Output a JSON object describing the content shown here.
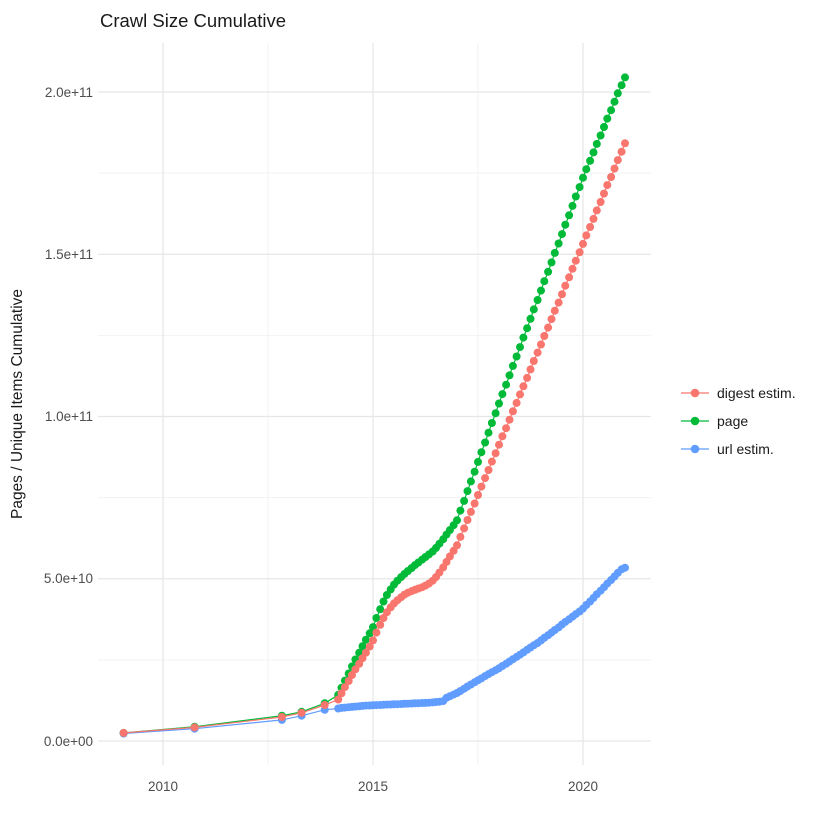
{
  "chart_data": {
    "type": "scatter",
    "title": "Crawl Size Cumulative",
    "xlabel": "",
    "ylabel": "Pages / Unique Items Cumulative",
    "x_ticks": [
      2010,
      2015,
      2020
    ],
    "x_minor": [
      2012.5,
      2017.5
    ],
    "y_ticks": [
      "0.0e+00",
      "5.0e+10",
      "1.0e+11",
      "1.5e+11",
      "2.0e+11"
    ],
    "y_tick_values_e9": [
      0,
      50,
      100,
      150,
      200
    ],
    "y_minor_e9": [
      25,
      75,
      125,
      175
    ],
    "xlim": [
      2008.45,
      2021.62
    ],
    "ylim_e9": [
      -7.4,
      215.1
    ],
    "units": "values in billions of pages/items (1 = 1e9)",
    "grid": "major+minor",
    "grid_major_color": "#e6e6e6",
    "grid_minor_color": "#f2f2f2",
    "background_color": "#ffffff",
    "legend_position": "right",
    "point_radius": 4,
    "series": [
      {
        "name": "digest estim.",
        "color": "#F8766D",
        "points": [
          [
            2009.06,
            2.5
          ],
          [
            2010.75,
            4.2
          ],
          [
            2012.83,
            7.4
          ],
          [
            2013.3,
            8.7
          ],
          [
            2013.85,
            11.1
          ],
          [
            2014.17,
            12.8
          ],
          [
            2014.25,
            14.7
          ],
          [
            2014.33,
            16.6
          ],
          [
            2014.42,
            18.5
          ],
          [
            2014.5,
            20.3
          ],
          [
            2014.58,
            22.1
          ],
          [
            2014.67,
            23.8
          ],
          [
            2014.75,
            25.5
          ],
          [
            2014.83,
            27.2
          ],
          [
            2014.92,
            29.1
          ],
          [
            2015.0,
            31.0
          ],
          [
            2015.08,
            33.4
          ],
          [
            2015.17,
            35.8
          ],
          [
            2015.25,
            37.9
          ],
          [
            2015.33,
            39.7
          ],
          [
            2015.42,
            41.2
          ],
          [
            2015.5,
            42.4
          ],
          [
            2015.58,
            43.4
          ],
          [
            2015.67,
            44.3
          ],
          [
            2015.75,
            45.1
          ],
          [
            2015.83,
            45.7
          ],
          [
            2015.92,
            46.2
          ],
          [
            2016.0,
            46.6
          ],
          [
            2016.08,
            47.0
          ],
          [
            2016.17,
            47.4
          ],
          [
            2016.25,
            47.9
          ],
          [
            2016.33,
            48.5
          ],
          [
            2016.42,
            49.4
          ],
          [
            2016.5,
            50.5
          ],
          [
            2016.58,
            51.9
          ],
          [
            2016.67,
            53.5
          ],
          [
            2016.75,
            55.2
          ],
          [
            2016.83,
            56.9
          ],
          [
            2016.92,
            58.6
          ],
          [
            2017.0,
            60.3
          ],
          [
            2017.08,
            62.9
          ],
          [
            2017.17,
            65.5
          ],
          [
            2017.25,
            68.1
          ],
          [
            2017.33,
            70.6
          ],
          [
            2017.42,
            73.2
          ],
          [
            2017.5,
            75.8
          ],
          [
            2017.58,
            78.4
          ],
          [
            2017.67,
            81.0
          ],
          [
            2017.75,
            83.5
          ],
          [
            2017.83,
            86.1
          ],
          [
            2017.92,
            88.7
          ],
          [
            2018.0,
            91.3
          ],
          [
            2018.08,
            93.9
          ],
          [
            2018.17,
            96.4
          ],
          [
            2018.25,
            99.0
          ],
          [
            2018.33,
            101.6
          ],
          [
            2018.42,
            104.2
          ],
          [
            2018.5,
            106.8
          ],
          [
            2018.58,
            109.3
          ],
          [
            2018.67,
            111.9
          ],
          [
            2018.75,
            114.5
          ],
          [
            2018.83,
            117.1
          ],
          [
            2018.92,
            119.7
          ],
          [
            2019.0,
            122.2
          ],
          [
            2019.08,
            124.8
          ],
          [
            2019.17,
            127.4
          ],
          [
            2019.25,
            130.0
          ],
          [
            2019.33,
            132.6
          ],
          [
            2019.42,
            135.1
          ],
          [
            2019.5,
            137.7
          ],
          [
            2019.58,
            140.3
          ],
          [
            2019.67,
            142.9
          ],
          [
            2019.75,
            145.5
          ],
          [
            2019.83,
            148.0
          ],
          [
            2019.92,
            150.6
          ],
          [
            2020.0,
            153.2
          ],
          [
            2020.08,
            155.8
          ],
          [
            2020.17,
            158.4
          ],
          [
            2020.25,
            160.9
          ],
          [
            2020.33,
            163.5
          ],
          [
            2020.42,
            166.1
          ],
          [
            2020.5,
            168.7
          ],
          [
            2020.58,
            171.3
          ],
          [
            2020.67,
            173.8
          ],
          [
            2020.75,
            176.4
          ],
          [
            2020.83,
            179.0
          ],
          [
            2020.92,
            181.6
          ],
          [
            2021.0,
            184.2
          ]
        ]
      },
      {
        "name": "page",
        "color": "#00BA38",
        "points": [
          [
            2009.06,
            2.5
          ],
          [
            2010.75,
            4.4
          ],
          [
            2012.83,
            7.8
          ],
          [
            2013.3,
            9.0
          ],
          [
            2013.85,
            11.6
          ],
          [
            2014.17,
            14.2
          ],
          [
            2014.25,
            16.4
          ],
          [
            2014.33,
            18.6
          ],
          [
            2014.42,
            20.8
          ],
          [
            2014.5,
            23.0
          ],
          [
            2014.58,
            25.1
          ],
          [
            2014.67,
            27.2
          ],
          [
            2014.75,
            29.2
          ],
          [
            2014.83,
            31.2
          ],
          [
            2014.92,
            33.2
          ],
          [
            2015.0,
            35.1
          ],
          [
            2015.08,
            37.9
          ],
          [
            2015.17,
            40.6
          ],
          [
            2015.25,
            43.0
          ],
          [
            2015.33,
            45.0
          ],
          [
            2015.42,
            46.7
          ],
          [
            2015.5,
            48.2
          ],
          [
            2015.58,
            49.4
          ],
          [
            2015.67,
            50.5
          ],
          [
            2015.75,
            51.5
          ],
          [
            2015.83,
            52.4
          ],
          [
            2015.92,
            53.3
          ],
          [
            2016.0,
            54.2
          ],
          [
            2016.08,
            55.0
          ],
          [
            2016.17,
            55.9
          ],
          [
            2016.25,
            56.7
          ],
          [
            2016.33,
            57.5
          ],
          [
            2016.42,
            58.4
          ],
          [
            2016.5,
            59.5
          ],
          [
            2016.58,
            60.8
          ],
          [
            2016.67,
            62.2
          ],
          [
            2016.75,
            63.6
          ],
          [
            2016.83,
            65.0
          ],
          [
            2016.92,
            66.5
          ],
          [
            2017.0,
            68.0
          ],
          [
            2017.08,
            71.0
          ],
          [
            2017.17,
            74.0
          ],
          [
            2017.25,
            77.0
          ],
          [
            2017.33,
            80.0
          ],
          [
            2017.42,
            83.0
          ],
          [
            2017.5,
            86.0
          ],
          [
            2017.58,
            89.0
          ],
          [
            2017.67,
            92.0
          ],
          [
            2017.75,
            95.0
          ],
          [
            2017.83,
            98.0
          ],
          [
            2017.92,
            101.0
          ],
          [
            2018.0,
            104.0
          ],
          [
            2018.08,
            106.9
          ],
          [
            2018.17,
            109.8
          ],
          [
            2018.25,
            112.7
          ],
          [
            2018.33,
            115.6
          ],
          [
            2018.42,
            118.5
          ],
          [
            2018.5,
            121.4
          ],
          [
            2018.58,
            124.3
          ],
          [
            2018.67,
            127.2
          ],
          [
            2018.75,
            130.1
          ],
          [
            2018.83,
            133.0
          ],
          [
            2018.92,
            135.9
          ],
          [
            2019.0,
            138.8
          ],
          [
            2019.08,
            141.7
          ],
          [
            2019.17,
            144.6
          ],
          [
            2019.25,
            147.5
          ],
          [
            2019.33,
            150.4
          ],
          [
            2019.42,
            153.3
          ],
          [
            2019.5,
            156.2
          ],
          [
            2019.58,
            159.1
          ],
          [
            2019.67,
            162.0
          ],
          [
            2019.75,
            164.9
          ],
          [
            2019.83,
            167.8
          ],
          [
            2019.92,
            170.7
          ],
          [
            2020.0,
            173.6
          ],
          [
            2020.08,
            176.2
          ],
          [
            2020.17,
            178.8
          ],
          [
            2020.25,
            181.4
          ],
          [
            2020.33,
            184.0
          ],
          [
            2020.42,
            186.6
          ],
          [
            2020.5,
            189.2
          ],
          [
            2020.58,
            191.8
          ],
          [
            2020.67,
            194.4
          ],
          [
            2020.75,
            197.0
          ],
          [
            2020.83,
            199.6
          ],
          [
            2020.92,
            202.1
          ],
          [
            2021.0,
            204.5
          ]
        ]
      },
      {
        "name": "url estim.",
        "color": "#619CFF",
        "points": [
          [
            2009.06,
            2.3
          ],
          [
            2010.75,
            3.8
          ],
          [
            2012.83,
            6.5
          ],
          [
            2013.3,
            7.8
          ],
          [
            2013.85,
            9.6
          ],
          [
            2014.17,
            10.0
          ],
          [
            2014.25,
            10.2
          ],
          [
            2014.33,
            10.3
          ],
          [
            2014.42,
            10.4
          ],
          [
            2014.5,
            10.5
          ],
          [
            2014.58,
            10.6
          ],
          [
            2014.67,
            10.7
          ],
          [
            2014.75,
            10.8
          ],
          [
            2014.83,
            10.9
          ],
          [
            2014.92,
            10.95
          ],
          [
            2015.0,
            11.0
          ],
          [
            2015.08,
            11.05
          ],
          [
            2015.17,
            11.1
          ],
          [
            2015.25,
            11.15
          ],
          [
            2015.33,
            11.2
          ],
          [
            2015.42,
            11.25
          ],
          [
            2015.5,
            11.3
          ],
          [
            2015.58,
            11.35
          ],
          [
            2015.67,
            11.4
          ],
          [
            2015.75,
            11.45
          ],
          [
            2015.83,
            11.5
          ],
          [
            2015.92,
            11.55
          ],
          [
            2016.0,
            11.6
          ],
          [
            2016.08,
            11.65
          ],
          [
            2016.17,
            11.7
          ],
          [
            2016.25,
            11.75
          ],
          [
            2016.33,
            11.8
          ],
          [
            2016.42,
            11.9
          ],
          [
            2016.5,
            12.0
          ],
          [
            2016.58,
            12.1
          ],
          [
            2016.67,
            12.3
          ],
          [
            2016.75,
            13.3
          ],
          [
            2016.83,
            13.8
          ],
          [
            2016.92,
            14.3
          ],
          [
            2017.0,
            14.8
          ],
          [
            2017.08,
            15.4
          ],
          [
            2017.17,
            16.1
          ],
          [
            2017.25,
            16.8
          ],
          [
            2017.33,
            17.4
          ],
          [
            2017.42,
            18.1
          ],
          [
            2017.5,
            18.7
          ],
          [
            2017.58,
            19.3
          ],
          [
            2017.67,
            20.0
          ],
          [
            2017.75,
            20.6
          ],
          [
            2017.83,
            21.2
          ],
          [
            2017.92,
            21.8
          ],
          [
            2018.0,
            22.4
          ],
          [
            2018.08,
            23.1
          ],
          [
            2018.17,
            23.8
          ],
          [
            2018.25,
            24.5
          ],
          [
            2018.33,
            25.2
          ],
          [
            2018.42,
            25.9
          ],
          [
            2018.5,
            26.6
          ],
          [
            2018.58,
            27.3
          ],
          [
            2018.67,
            28.1
          ],
          [
            2018.75,
            28.8
          ],
          [
            2018.83,
            29.5
          ],
          [
            2018.92,
            30.2
          ],
          [
            2019.0,
            31.0
          ],
          [
            2019.08,
            31.8
          ],
          [
            2019.17,
            32.6
          ],
          [
            2019.25,
            33.4
          ],
          [
            2019.33,
            34.2
          ],
          [
            2019.42,
            35.0
          ],
          [
            2019.5,
            35.9
          ],
          [
            2019.58,
            36.7
          ],
          [
            2019.67,
            37.5
          ],
          [
            2019.75,
            38.3
          ],
          [
            2019.83,
            39.1
          ],
          [
            2019.92,
            39.9
          ],
          [
            2020.0,
            40.8
          ],
          [
            2020.08,
            41.9
          ],
          [
            2020.17,
            43.0
          ],
          [
            2020.25,
            44.1
          ],
          [
            2020.33,
            45.2
          ],
          [
            2020.42,
            46.3
          ],
          [
            2020.5,
            47.4
          ],
          [
            2020.58,
            48.5
          ],
          [
            2020.67,
            49.6
          ],
          [
            2020.75,
            50.7
          ],
          [
            2020.83,
            51.8
          ],
          [
            2020.92,
            52.9
          ],
          [
            2021.0,
            53.4
          ]
        ]
      }
    ]
  }
}
